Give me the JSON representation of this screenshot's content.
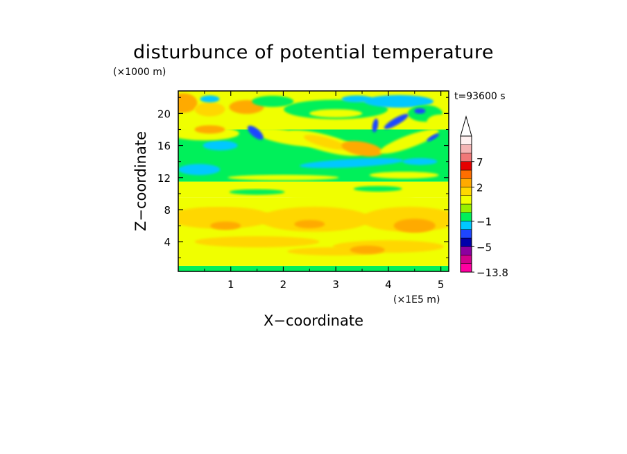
{
  "chart_data": {
    "type": "heatmap",
    "title": "disturbunce of potential temperature",
    "time_label": "t=93600 s",
    "xlabel": "X−coordinate",
    "ylabel": "Z−coordinate",
    "x_unit": "(×1E5 m)",
    "y_unit": "(×1000 m)",
    "xlim": [
      0,
      5.15
    ],
    "ylim": [
      0.3,
      22.8
    ],
    "x_ticks": [
      "1",
      "2",
      "3",
      "4",
      "5"
    ],
    "x_tick_values": [
      1,
      2,
      3,
      4,
      5
    ],
    "y_ticks": [
      "4",
      "8",
      "12",
      "16",
      "20"
    ],
    "y_tick_values": [
      4,
      8,
      12,
      16,
      20
    ],
    "colorbar": {
      "labels": [
        "7",
        "2",
        "−1",
        "−5",
        "−13.8"
      ],
      "label_values": [
        7,
        2,
        -1,
        -5,
        -13.8
      ],
      "extend": "max",
      "levels": [
        {
          "color": "#ff00a0",
          "range": [
            -13.8,
            -8
          ]
        },
        {
          "color": "#d2008c",
          "range": [
            -8,
            -6
          ]
        },
        {
          "color": "#8c00a0",
          "range": [
            -6,
            -5
          ]
        },
        {
          "color": "#0000aa",
          "range": [
            -5,
            -4
          ]
        },
        {
          "color": "#1e46ff",
          "range": [
            -4,
            -2
          ]
        },
        {
          "color": "#00c8ff",
          "range": [
            -2,
            -1
          ]
        },
        {
          "color": "#00f05a",
          "range": [
            -1,
            0
          ]
        },
        {
          "color": "#96f000",
          "range": [
            0,
            0.5
          ]
        },
        {
          "color": "#f0ff00",
          "range": [
            0.5,
            1
          ]
        },
        {
          "color": "#ffd700",
          "range": [
            1,
            2
          ]
        },
        {
          "color": "#ffaa00",
          "range": [
            2,
            4
          ]
        },
        {
          "color": "#ff6e00",
          "range": [
            4,
            6
          ]
        },
        {
          "color": "#e60000",
          "range": [
            6,
            7
          ]
        },
        {
          "color": "#f07878",
          "range": [
            7,
            9
          ]
        },
        {
          "color": "#f5b4b4",
          "range": [
            9,
            12
          ]
        },
        {
          "color": "#fff0f0",
          "range": [
            12,
            14
          ]
        }
      ]
    },
    "field_colors": {
      "yellow": "#f0ff00",
      "gold": "#ffd700",
      "orange": "#ffaa00",
      "green": "#00f05a",
      "cyan": "#00c8ff",
      "blue": "#1e46ff",
      "dark_blue": "#0000aa"
    }
  }
}
